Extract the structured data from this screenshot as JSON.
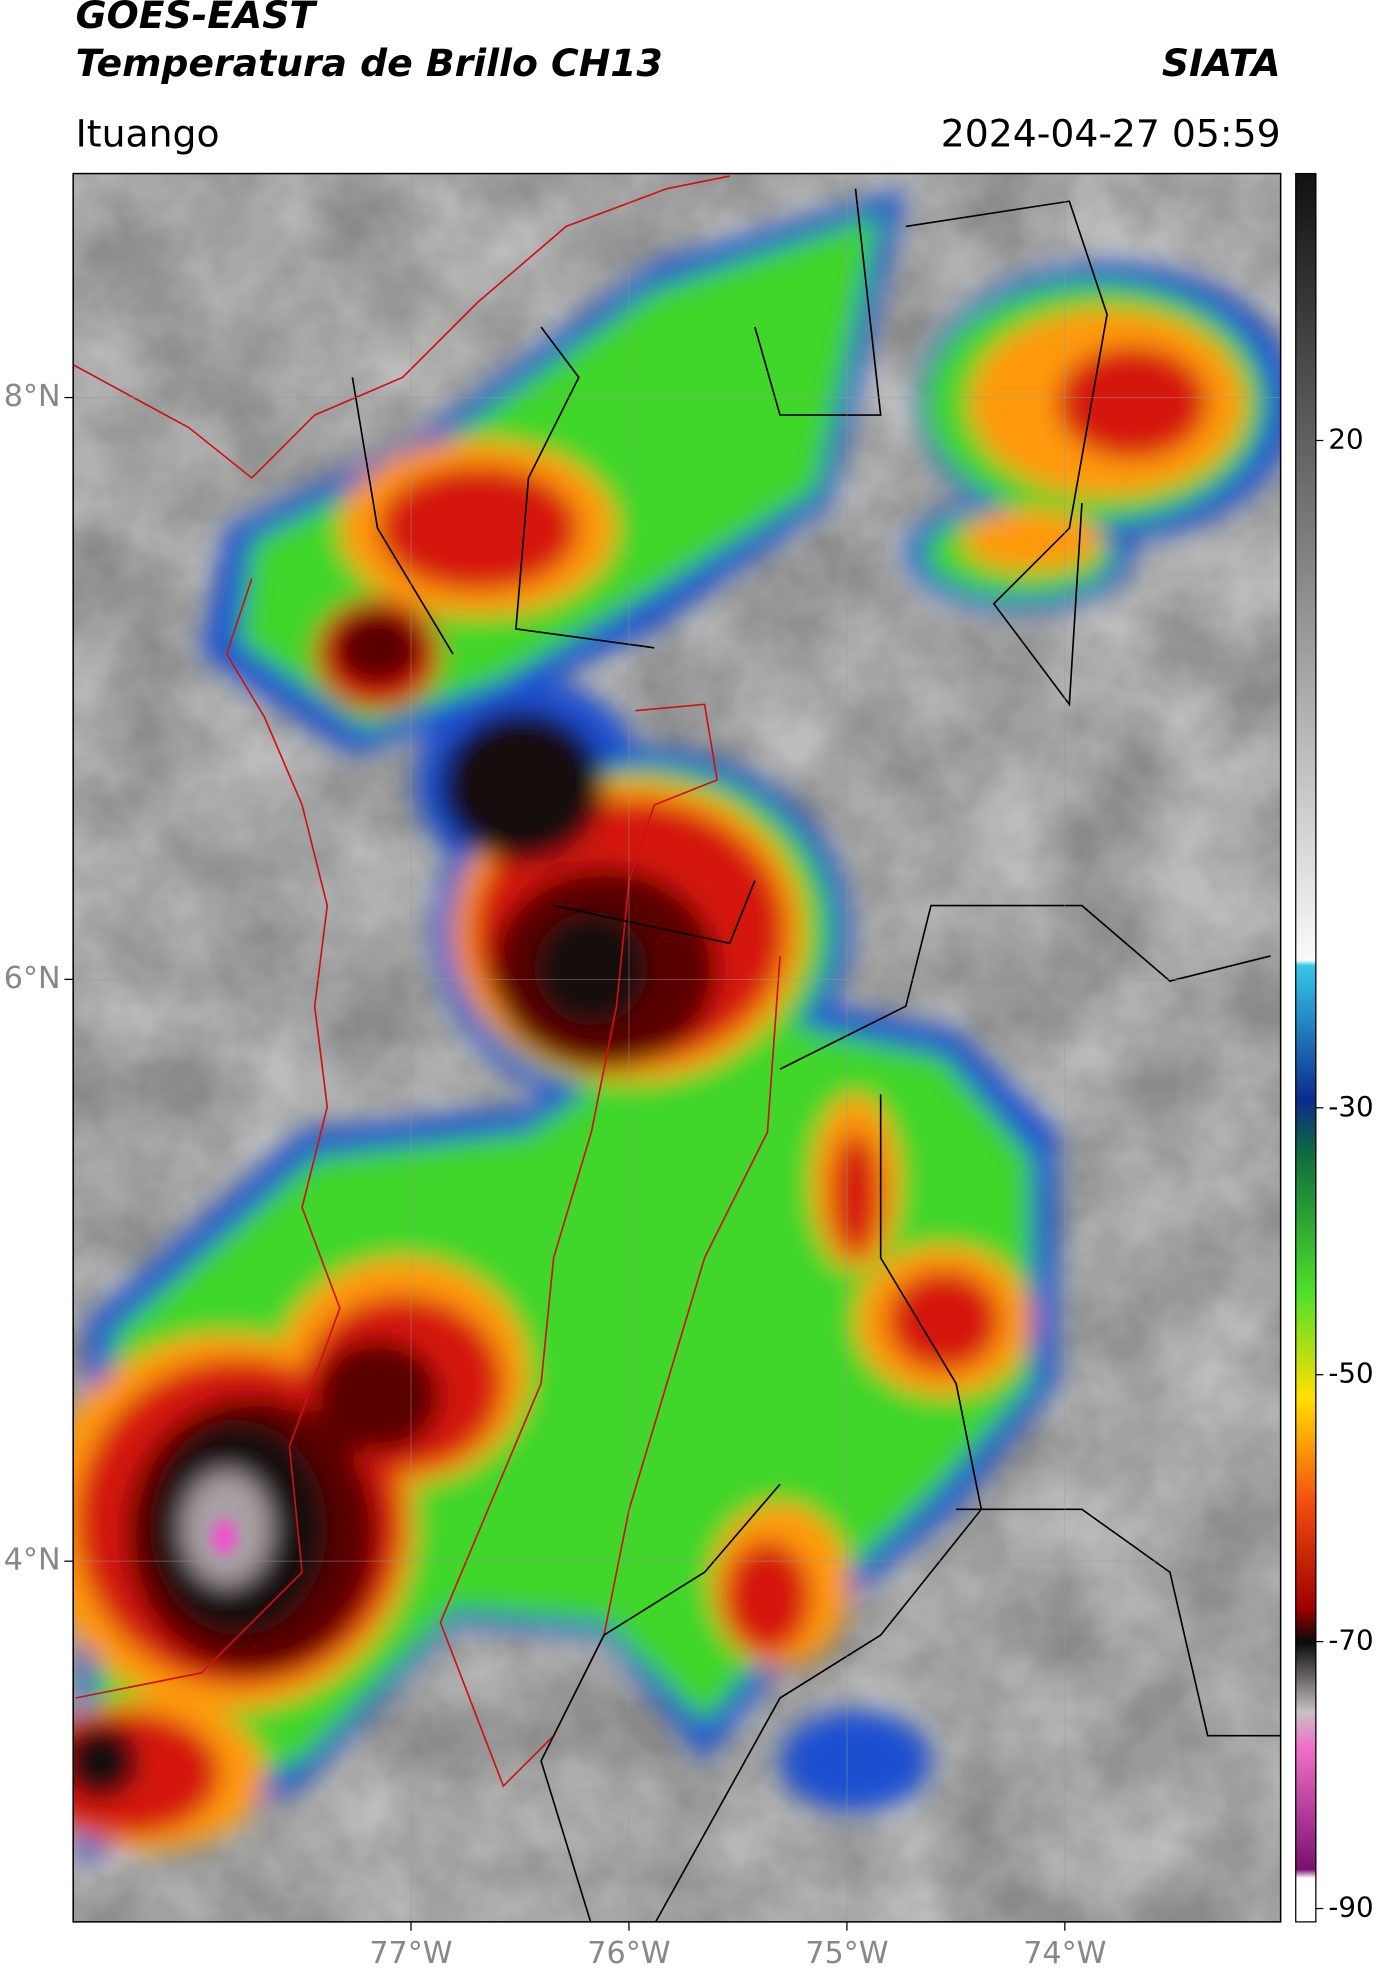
{
  "header": {
    "satellite": "GOES-EAST",
    "product": "Temperatura de Brillo CH13",
    "source": "SIATA",
    "location": "Ituango",
    "datetime": "2024-04-27 05:59"
  },
  "map": {
    "xlim": [
      -78.55,
      -73.01
    ],
    "ylim": [
      2.76,
      8.77
    ],
    "xticks": [
      {
        "value": -77,
        "label": "77°W"
      },
      {
        "value": -76,
        "label": "76°W"
      },
      {
        "value": -75,
        "label": "75°W"
      },
      {
        "value": -74,
        "label": "74°W"
      }
    ],
    "yticks": [
      {
        "value": 8,
        "label": "8°N"
      },
      {
        "value": 6,
        "label": "6°N"
      },
      {
        "value": 4,
        "label": "4°N"
      }
    ],
    "grid": true
  },
  "colorbar": {
    "lim": [
      -91,
      40
    ],
    "ticks": [
      20,
      -30,
      -50,
      -70,
      -90
    ]
  }
}
